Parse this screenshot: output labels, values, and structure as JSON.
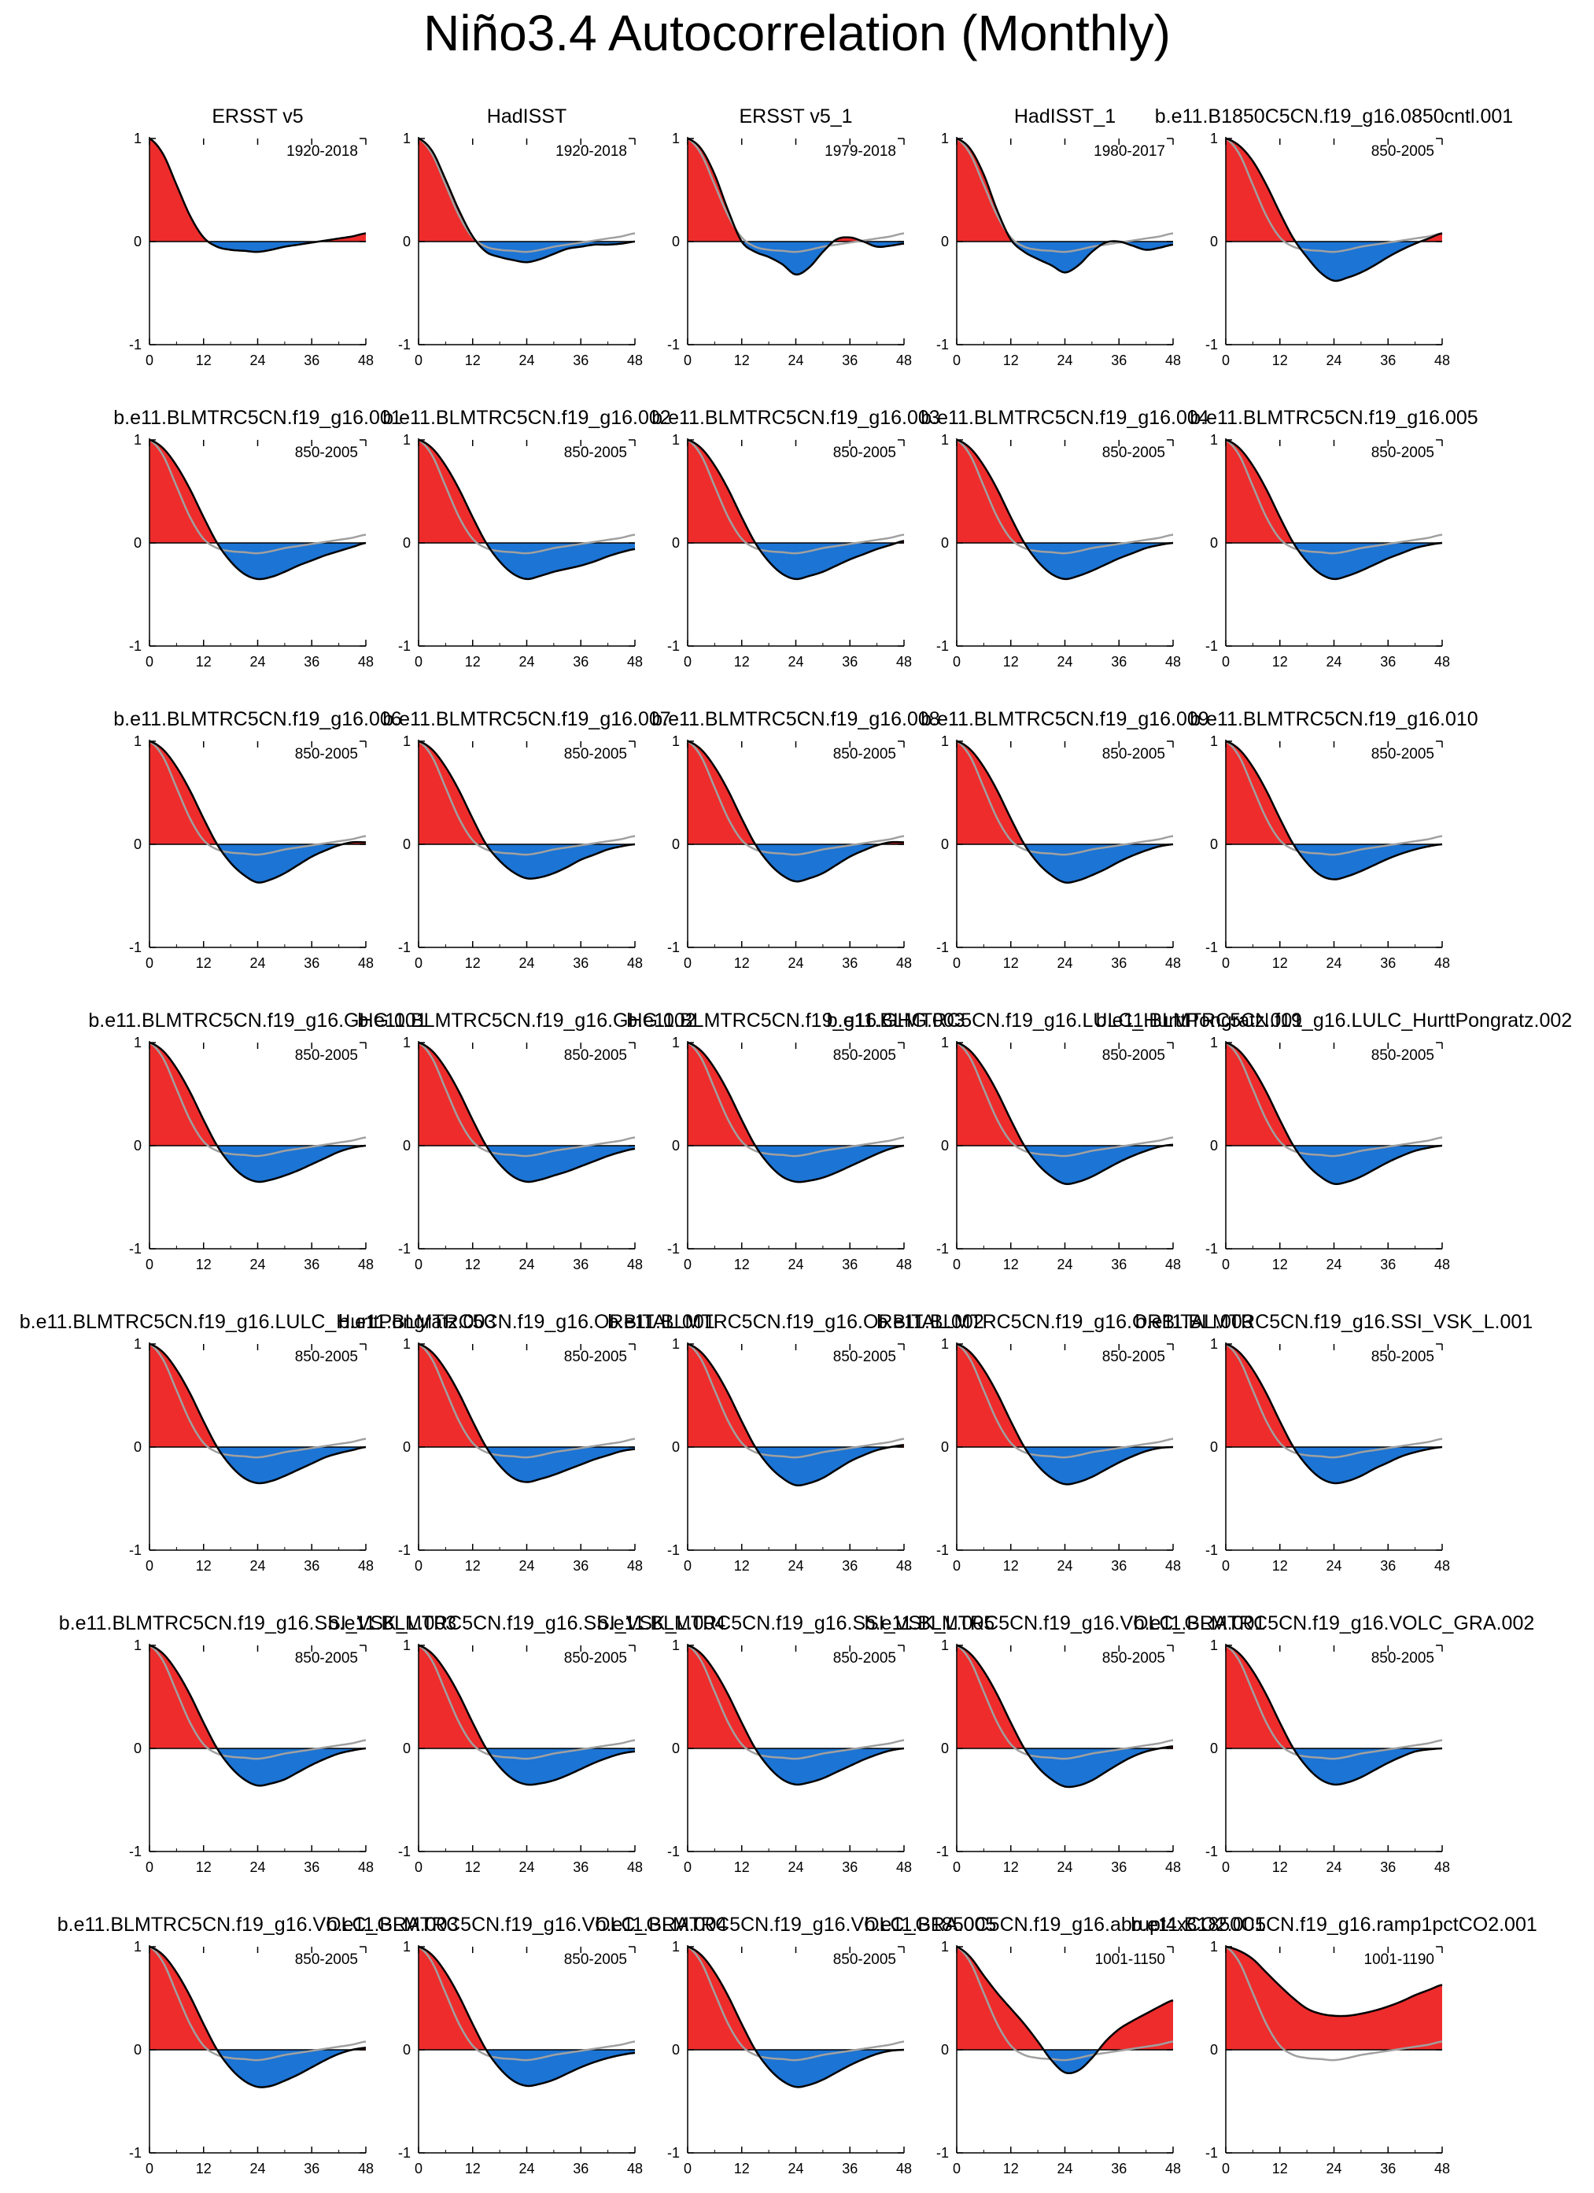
{
  "page_title": "Niño3.4 Autocorrelation (Monthly)",
  "colors": {
    "positive_fill": "#ee2c2c",
    "negative_fill": "#1c74d4",
    "curve": "#000000",
    "reference_curve": "#a0a0a0"
  },
  "chart_data": {
    "type": "area",
    "xlabel": "",
    "ylabel": "",
    "xlim": [
      0,
      48
    ],
    "ylim": [
      -1,
      1
    ],
    "x_ticks": [
      "0",
      "12",
      "24",
      "36",
      "48"
    ],
    "y_ticks": [
      "1",
      "0",
      "-1"
    ],
    "x": [
      0,
      3,
      6,
      9,
      12,
      15,
      18,
      21,
      24,
      27,
      30,
      33,
      36,
      39,
      42,
      45,
      48
    ],
    "reference_series": {
      "name": "ERSST v5 1920-2018 (grey reference)",
      "values": [
        1.0,
        0.85,
        0.55,
        0.25,
        0.04,
        -0.05,
        -0.08,
        -0.09,
        -0.1,
        -0.08,
        -0.05,
        -0.03,
        -0.01,
        0.01,
        0.03,
        0.05,
        0.08
      ]
    },
    "panels": [
      {
        "title": "ERSST v5",
        "period": "1920-2018",
        "show_reference": false,
        "values": [
          1.0,
          0.85,
          0.55,
          0.25,
          0.04,
          -0.05,
          -0.08,
          -0.09,
          -0.1,
          -0.08,
          -0.05,
          -0.03,
          -0.01,
          0.01,
          0.03,
          0.05,
          0.08
        ]
      },
      {
        "title": "HadISST",
        "period": "1920-2018",
        "show_reference": true,
        "values": [
          1.0,
          0.88,
          0.6,
          0.3,
          0.05,
          -0.1,
          -0.15,
          -0.18,
          -0.2,
          -0.17,
          -0.12,
          -0.07,
          -0.05,
          -0.03,
          -0.03,
          -0.02,
          0.0
        ]
      },
      {
        "title": "ERSST v5_1",
        "period": "1979-2018",
        "show_reference": true,
        "values": [
          1.0,
          0.9,
          0.65,
          0.3,
          0.0,
          -0.1,
          -0.15,
          -0.22,
          -0.32,
          -0.25,
          -0.1,
          0.02,
          0.04,
          0.0,
          -0.05,
          -0.04,
          -0.02
        ]
      },
      {
        "title": "HadISST_1",
        "period": "1980-2017",
        "show_reference": true,
        "values": [
          1.0,
          0.9,
          0.65,
          0.3,
          0.02,
          -0.1,
          -0.17,
          -0.23,
          -0.3,
          -0.23,
          -0.1,
          -0.01,
          0.0,
          -0.04,
          -0.08,
          -0.06,
          -0.03
        ]
      },
      {
        "title": "b.e11.B1850C5CN.f19_g16.0850cntl.001",
        "period": "850-2005",
        "show_reference": true,
        "values": [
          1.0,
          0.93,
          0.78,
          0.55,
          0.28,
          0.03,
          -0.15,
          -0.3,
          -0.38,
          -0.35,
          -0.3,
          -0.23,
          -0.15,
          -0.08,
          -0.02,
          0.03,
          0.08
        ]
      },
      {
        "title": "b.e11.BLMTRC5CN.f19_g16.001",
        "period": "850-2005",
        "show_reference": true,
        "values": [
          1.0,
          0.92,
          0.75,
          0.52,
          0.25,
          0.0,
          -0.18,
          -0.3,
          -0.35,
          -0.33,
          -0.28,
          -0.22,
          -0.17,
          -0.12,
          -0.08,
          -0.04,
          0.0
        ]
      },
      {
        "title": "b.e11.BLMTRC5CN.f19_g16.002",
        "period": "850-2005",
        "show_reference": true,
        "values": [
          1.0,
          0.92,
          0.75,
          0.52,
          0.25,
          0.0,
          -0.18,
          -0.3,
          -0.35,
          -0.32,
          -0.28,
          -0.25,
          -0.22,
          -0.18,
          -0.13,
          -0.09,
          -0.06
        ]
      },
      {
        "title": "b.e11.BLMTRC5CN.f19_g16.003",
        "period": "850-2005",
        "show_reference": true,
        "values": [
          1.0,
          0.92,
          0.75,
          0.52,
          0.25,
          0.0,
          -0.18,
          -0.3,
          -0.35,
          -0.32,
          -0.28,
          -0.22,
          -0.16,
          -0.11,
          -0.06,
          -0.02,
          0.02
        ]
      },
      {
        "title": "b.e11.BLMTRC5CN.f19_g16.004",
        "period": "850-2005",
        "show_reference": true,
        "values": [
          1.0,
          0.92,
          0.75,
          0.52,
          0.25,
          0.0,
          -0.18,
          -0.3,
          -0.35,
          -0.32,
          -0.27,
          -0.21,
          -0.15,
          -0.1,
          -0.05,
          -0.02,
          0.0
        ]
      },
      {
        "title": "b.e11.BLMTRC5CN.f19_g16.005",
        "period": "850-2005",
        "show_reference": true,
        "values": [
          1.0,
          0.92,
          0.75,
          0.52,
          0.25,
          0.0,
          -0.18,
          -0.3,
          -0.35,
          -0.32,
          -0.27,
          -0.21,
          -0.15,
          -0.1,
          -0.05,
          -0.02,
          0.0
        ]
      },
      {
        "title": "b.e11.BLMTRC5CN.f19_g16.006",
        "period": "850-2005",
        "show_reference": true,
        "values": [
          1.0,
          0.92,
          0.75,
          0.52,
          0.25,
          0.0,
          -0.18,
          -0.3,
          -0.37,
          -0.34,
          -0.28,
          -0.2,
          -0.12,
          -0.06,
          -0.01,
          0.02,
          0.02
        ]
      },
      {
        "title": "b.e11.BLMTRC5CN.f19_g16.007",
        "period": "850-2005",
        "show_reference": true,
        "values": [
          1.0,
          0.92,
          0.75,
          0.52,
          0.25,
          0.0,
          -0.16,
          -0.27,
          -0.33,
          -0.32,
          -0.28,
          -0.22,
          -0.15,
          -0.1,
          -0.05,
          -0.02,
          0.0
        ]
      },
      {
        "title": "b.e11.BLMTRC5CN.f19_g16.008",
        "period": "850-2005",
        "show_reference": true,
        "values": [
          1.0,
          0.92,
          0.75,
          0.52,
          0.25,
          0.0,
          -0.18,
          -0.3,
          -0.36,
          -0.33,
          -0.28,
          -0.2,
          -0.12,
          -0.06,
          -0.01,
          0.02,
          0.02
        ]
      },
      {
        "title": "b.e11.BLMTRC5CN.f19_g16.009",
        "period": "850-2005",
        "show_reference": true,
        "values": [
          1.0,
          0.92,
          0.75,
          0.52,
          0.25,
          0.0,
          -0.18,
          -0.3,
          -0.37,
          -0.35,
          -0.3,
          -0.24,
          -0.17,
          -0.11,
          -0.06,
          -0.02,
          0.0
        ]
      },
      {
        "title": "b.e11.BLMTRC5CN.f19_g16.010",
        "period": "850-2005",
        "show_reference": true,
        "values": [
          1.0,
          0.92,
          0.75,
          0.52,
          0.25,
          0.0,
          -0.18,
          -0.3,
          -0.34,
          -0.31,
          -0.26,
          -0.2,
          -0.14,
          -0.09,
          -0.05,
          -0.02,
          0.0
        ]
      },
      {
        "title": "b.e11.BLMTRC5CN.f19_g16.GHG.001",
        "period": "850-2005",
        "show_reference": true,
        "values": [
          1.0,
          0.92,
          0.75,
          0.52,
          0.25,
          0.0,
          -0.18,
          -0.3,
          -0.35,
          -0.33,
          -0.29,
          -0.24,
          -0.18,
          -0.12,
          -0.06,
          -0.02,
          0.0
        ]
      },
      {
        "title": "b.e11.BLMTRC5CN.f19_g16.GHG.002",
        "period": "850-2005",
        "show_reference": true,
        "values": [
          1.0,
          0.92,
          0.75,
          0.52,
          0.25,
          0.0,
          -0.18,
          -0.3,
          -0.35,
          -0.33,
          -0.29,
          -0.25,
          -0.2,
          -0.15,
          -0.1,
          -0.06,
          -0.03
        ]
      },
      {
        "title": "b.e11.BLMTRC5CN.f19_g16.GHG.003",
        "period": "850-2005",
        "show_reference": true,
        "values": [
          1.0,
          0.92,
          0.75,
          0.52,
          0.25,
          0.0,
          -0.18,
          -0.3,
          -0.35,
          -0.34,
          -0.31,
          -0.26,
          -0.2,
          -0.14,
          -0.08,
          -0.03,
          0.0
        ]
      },
      {
        "title": "b.e11.BLMTRC5CN.f19_g16.LULC_HurttPongratz.001",
        "period": "850-2005",
        "show_reference": true,
        "values": [
          1.0,
          0.92,
          0.75,
          0.52,
          0.25,
          0.0,
          -0.18,
          -0.3,
          -0.37,
          -0.35,
          -0.3,
          -0.23,
          -0.16,
          -0.1,
          -0.05,
          -0.01,
          0.01
        ]
      },
      {
        "title": "b.e11.BLMTRC5CN.f19_g16.LULC_HurttPongratz.002",
        "period": "850-2005",
        "show_reference": true,
        "values": [
          1.0,
          0.92,
          0.75,
          0.52,
          0.25,
          0.0,
          -0.18,
          -0.3,
          -0.37,
          -0.35,
          -0.3,
          -0.23,
          -0.16,
          -0.1,
          -0.05,
          -0.02,
          0.0
        ]
      },
      {
        "title": "b.e11.BLMTRC5CN.f19_g16.LULC_HurttPongratz.003",
        "period": "850-2005",
        "show_reference": true,
        "values": [
          1.0,
          0.92,
          0.75,
          0.52,
          0.25,
          0.0,
          -0.18,
          -0.3,
          -0.35,
          -0.33,
          -0.28,
          -0.22,
          -0.16,
          -0.1,
          -0.06,
          -0.03,
          0.0
        ]
      },
      {
        "title": "b.e11.BLMTRC5CN.f19_g16.ORBITAL.001",
        "period": "850-2005",
        "show_reference": true,
        "values": [
          1.0,
          0.92,
          0.75,
          0.52,
          0.25,
          0.0,
          -0.18,
          -0.3,
          -0.34,
          -0.31,
          -0.27,
          -0.22,
          -0.17,
          -0.12,
          -0.08,
          -0.04,
          -0.02
        ]
      },
      {
        "title": "b.e11.BLMTRC5CN.f19_g16.ORBITAL.002",
        "period": "850-2005",
        "show_reference": true,
        "values": [
          1.0,
          0.92,
          0.75,
          0.52,
          0.25,
          0.0,
          -0.18,
          -0.3,
          -0.37,
          -0.35,
          -0.3,
          -0.22,
          -0.14,
          -0.08,
          -0.03,
          0.0,
          0.02
        ]
      },
      {
        "title": "b.e11.BLMTRC5CN.f19_g16.ORBITAL.003",
        "period": "850-2005",
        "show_reference": true,
        "values": [
          1.0,
          0.92,
          0.75,
          0.52,
          0.25,
          0.0,
          -0.18,
          -0.3,
          -0.36,
          -0.34,
          -0.29,
          -0.22,
          -0.15,
          -0.09,
          -0.04,
          -0.01,
          0.0
        ]
      },
      {
        "title": "b.e11.BLMTRC5CN.f19_g16.SSI_VSK_L.001",
        "period": "850-2005",
        "show_reference": true,
        "values": [
          1.0,
          0.92,
          0.75,
          0.52,
          0.25,
          0.0,
          -0.18,
          -0.3,
          -0.35,
          -0.33,
          -0.28,
          -0.21,
          -0.15,
          -0.09,
          -0.05,
          -0.02,
          0.0
        ]
      },
      {
        "title": "b.e11.BLMTRC5CN.f19_g16.SSI_VSK_L.003",
        "period": "850-2005",
        "show_reference": true,
        "values": [
          1.0,
          0.92,
          0.75,
          0.52,
          0.25,
          0.0,
          -0.18,
          -0.3,
          -0.36,
          -0.34,
          -0.3,
          -0.23,
          -0.16,
          -0.1,
          -0.05,
          -0.02,
          0.0
        ]
      },
      {
        "title": "b.e11.BLMTRC5CN.f19_g16.SSI_VSK_L.004",
        "period": "850-2005",
        "show_reference": true,
        "values": [
          1.0,
          0.92,
          0.75,
          0.52,
          0.25,
          0.0,
          -0.18,
          -0.3,
          -0.35,
          -0.34,
          -0.31,
          -0.26,
          -0.2,
          -0.14,
          -0.09,
          -0.05,
          -0.03
        ]
      },
      {
        "title": "b.e11.BLMTRC5CN.f19_g16.SSI_VSK_L.005",
        "period": "850-2005",
        "show_reference": true,
        "values": [
          1.0,
          0.92,
          0.75,
          0.52,
          0.25,
          0.0,
          -0.18,
          -0.3,
          -0.35,
          -0.33,
          -0.29,
          -0.23,
          -0.17,
          -0.11,
          -0.06,
          -0.02,
          0.0
        ]
      },
      {
        "title": "b.e11.BLMTRC5CN.f19_g16.VOLC_GRA.001",
        "period": "850-2005",
        "show_reference": true,
        "values": [
          1.0,
          0.92,
          0.75,
          0.52,
          0.25,
          0.0,
          -0.18,
          -0.3,
          -0.37,
          -0.36,
          -0.31,
          -0.23,
          -0.15,
          -0.08,
          -0.03,
          0.0,
          0.02
        ]
      },
      {
        "title": "b.e11.BLMTRC5CN.f19_g16.VOLC_GRA.002",
        "period": "850-2005",
        "show_reference": true,
        "values": [
          1.0,
          0.92,
          0.75,
          0.52,
          0.25,
          0.0,
          -0.18,
          -0.3,
          -0.35,
          -0.33,
          -0.28,
          -0.21,
          -0.14,
          -0.08,
          -0.03,
          -0.01,
          0.0
        ]
      },
      {
        "title": "b.e11.BLMTRC5CN.f19_g16.VOLC_GRA.003",
        "period": "850-2005",
        "show_reference": true,
        "values": [
          1.0,
          0.92,
          0.75,
          0.52,
          0.25,
          0.0,
          -0.18,
          -0.3,
          -0.36,
          -0.35,
          -0.3,
          -0.24,
          -0.17,
          -0.1,
          -0.04,
          0.0,
          0.02
        ]
      },
      {
        "title": "b.e11.BLMTRC5CN.f19_g16.VOLC_GRA.004",
        "period": "850-2005",
        "show_reference": true,
        "values": [
          1.0,
          0.92,
          0.75,
          0.52,
          0.25,
          0.0,
          -0.18,
          -0.3,
          -0.35,
          -0.33,
          -0.29,
          -0.23,
          -0.17,
          -0.12,
          -0.08,
          -0.05,
          -0.03
        ]
      },
      {
        "title": "b.e11.BLMTRC5CN.f19_g16.VOLC_GRA.005",
        "period": "850-2005",
        "show_reference": true,
        "values": [
          1.0,
          0.92,
          0.75,
          0.52,
          0.25,
          0.0,
          -0.18,
          -0.3,
          -0.36,
          -0.34,
          -0.29,
          -0.22,
          -0.15,
          -0.09,
          -0.04,
          -0.01,
          0.0
        ]
      },
      {
        "title": "b.e11.B1850C5CN.f19_g16.abrupt4xCO2.001",
        "period": "1001-1150",
        "show_reference": true,
        "values": [
          1.0,
          0.9,
          0.72,
          0.55,
          0.4,
          0.25,
          0.08,
          -0.1,
          -0.22,
          -0.2,
          -0.08,
          0.08,
          0.2,
          0.28,
          0.35,
          0.42,
          0.48
        ]
      },
      {
        "title": "b.e11.B1850C5CN.f19_g16.ramp1pctCO2.001",
        "period": "1001-1190",
        "show_reference": true,
        "values": [
          1.0,
          0.96,
          0.88,
          0.75,
          0.62,
          0.5,
          0.4,
          0.35,
          0.33,
          0.33,
          0.35,
          0.38,
          0.42,
          0.47,
          0.53,
          0.58,
          0.63
        ]
      }
    ]
  }
}
